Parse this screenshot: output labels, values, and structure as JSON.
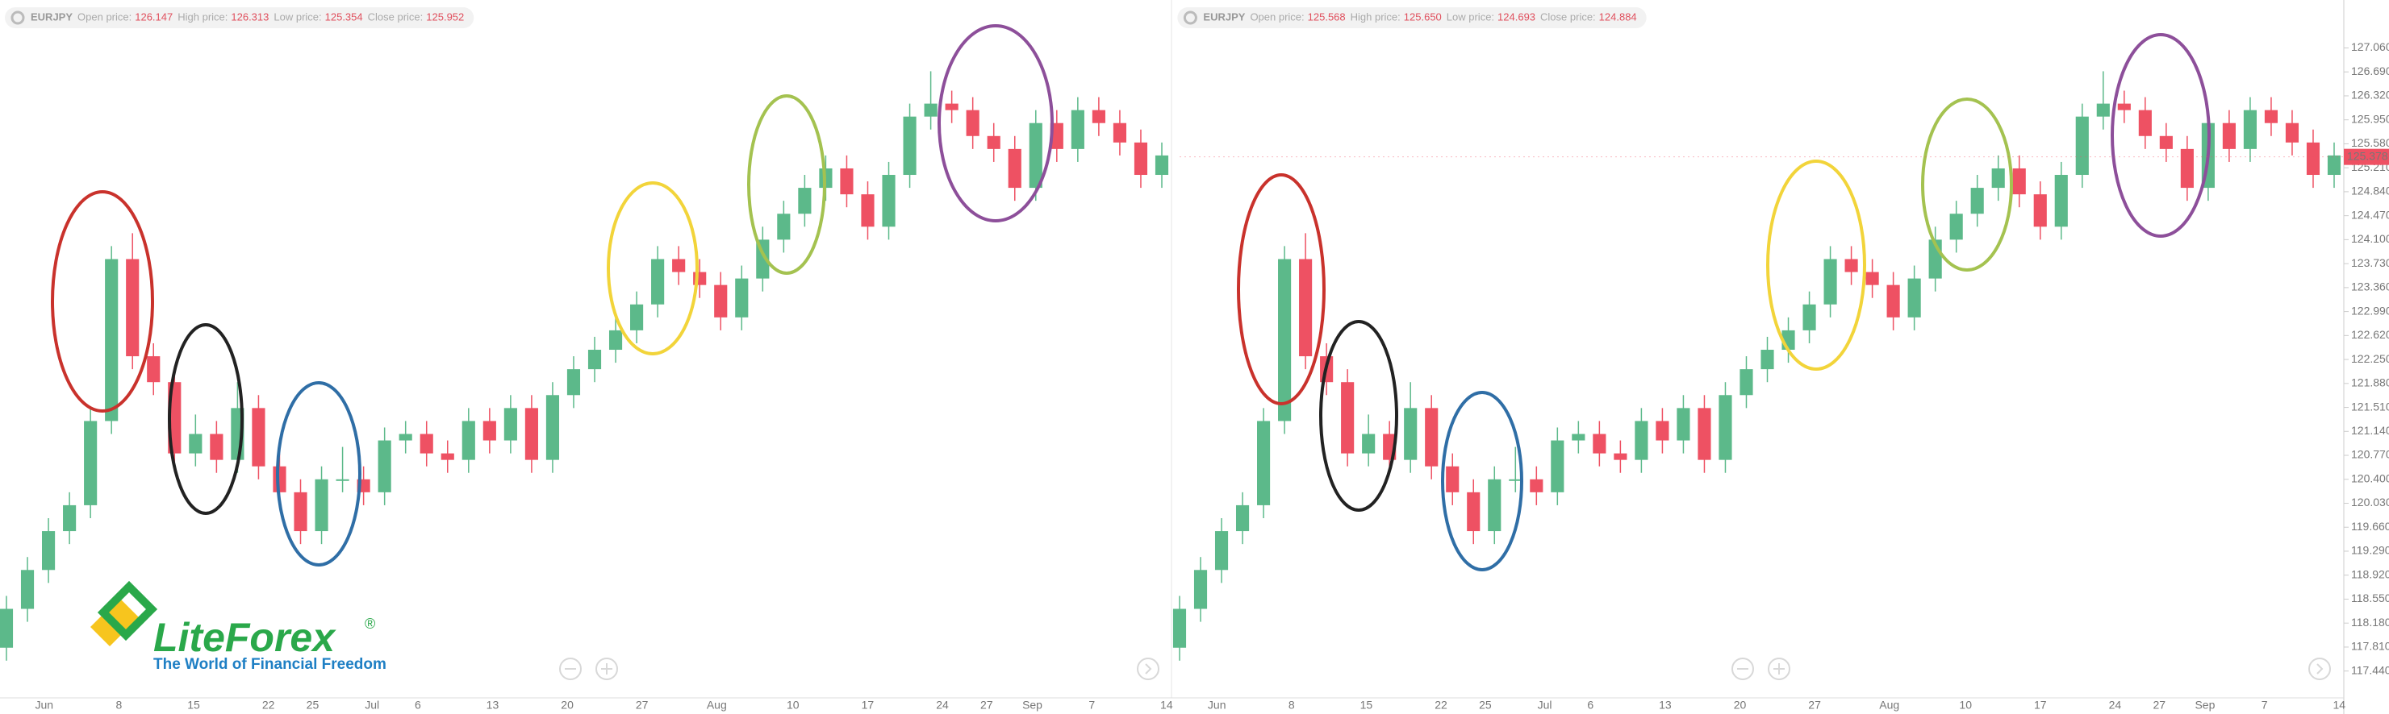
{
  "chart_data": [
    {
      "type": "candlestick",
      "symbol": "EURJPY",
      "info": {
        "labels": [
          "Open price:",
          "High price:",
          "Low price:",
          "Close price:"
        ],
        "values": [
          126.147,
          126.313,
          125.354,
          125.952
        ]
      },
      "ylim": [
        117.1,
        127.8
      ],
      "x_labels": [
        "Jun",
        "8",
        "15",
        "22",
        "25",
        "Jul",
        "6",
        "13",
        "20",
        "27",
        "Aug",
        "10",
        "17",
        "24",
        "27",
        "Sep",
        "7",
        "14"
      ],
      "up_color": "#5cb98a",
      "down_color": "#ee5163",
      "open": [
        117.8,
        118.4,
        119.0,
        119.6,
        120.0,
        121.3,
        123.8,
        122.3,
        121.9,
        120.8,
        121.1,
        120.7,
        121.5,
        120.6,
        120.2,
        119.6,
        120.4,
        120.4,
        120.2,
        121.0,
        121.1,
        120.8,
        120.7,
        121.3,
        121.0,
        121.5,
        120.7,
        121.7,
        122.1,
        122.4,
        122.7,
        123.1,
        123.8,
        123.6,
        123.4,
        122.9,
        123.5,
        124.1,
        124.5,
        124.9,
        125.2,
        124.8,
        124.3,
        125.1,
        126.0,
        126.2,
        126.1,
        125.7,
        125.5,
        124.9,
        125.9,
        125.5,
        126.1,
        125.9,
        125.6,
        125.1
      ],
      "high": [
        118.6,
        119.2,
        119.8,
        120.2,
        121.5,
        124.0,
        124.2,
        122.5,
        122.1,
        121.4,
        121.3,
        121.9,
        121.7,
        120.8,
        120.4,
        120.6,
        120.9,
        120.6,
        121.2,
        121.3,
        121.3,
        121.0,
        121.5,
        121.5,
        121.7,
        121.7,
        121.9,
        122.3,
        122.6,
        122.9,
        123.3,
        124.0,
        124.0,
        123.8,
        123.6,
        123.7,
        124.3,
        124.7,
        125.1,
        125.4,
        125.4,
        125.0,
        125.3,
        126.2,
        126.7,
        126.4,
        126.3,
        125.9,
        125.7,
        126.1,
        126.1,
        126.3,
        126.3,
        126.1,
        125.8,
        125.6
      ],
      "low": [
        117.6,
        118.2,
        118.8,
        119.4,
        119.8,
        121.1,
        122.1,
        121.7,
        120.6,
        120.6,
        120.5,
        120.5,
        120.4,
        120.0,
        119.4,
        119.4,
        120.2,
        120.0,
        120.0,
        120.8,
        120.6,
        120.5,
        120.5,
        120.8,
        120.8,
        120.5,
        120.5,
        121.5,
        121.9,
        122.2,
        122.5,
        122.9,
        123.4,
        123.2,
        122.7,
        122.7,
        123.3,
        123.9,
        124.3,
        124.7,
        124.6,
        124.1,
        124.1,
        124.9,
        125.8,
        125.9,
        125.5,
        125.3,
        124.7,
        124.7,
        125.3,
        125.3,
        125.7,
        125.4,
        124.9,
        124.9
      ],
      "close": [
        118.4,
        119.0,
        119.6,
        120.0,
        121.3,
        123.8,
        122.3,
        121.9,
        120.8,
        121.1,
        120.7,
        121.5,
        120.6,
        120.2,
        119.6,
        120.4,
        120.4,
        120.2,
        121.0,
        121.1,
        120.8,
        120.7,
        121.3,
        121.0,
        121.5,
        120.7,
        121.7,
        122.1,
        122.4,
        122.7,
        123.1,
        123.8,
        123.6,
        123.4,
        122.9,
        123.5,
        124.1,
        124.5,
        124.9,
        125.2,
        124.8,
        124.3,
        125.1,
        126.0,
        126.2,
        126.1,
        125.7,
        125.5,
        124.9,
        125.9,
        125.5,
        126.1,
        125.9,
        125.6,
        125.1,
        125.4
      ]
    },
    {
      "type": "candlestick",
      "symbol": "EURJPY",
      "info": {
        "labels": [
          "Open price:",
          "High price:",
          "Low price:",
          "Close price:"
        ],
        "values": [
          125.568,
          125.65,
          124.693,
          124.884
        ],
        "value_labels": [
          "125.568",
          "125.650",
          "124.693",
          "124.884"
        ]
      },
      "ylim": [
        117.1,
        127.8
      ],
      "yticks": [
        {
          "value": 117.44,
          "label": "117.440"
        },
        {
          "value": 117.81,
          "label": "117.810"
        },
        {
          "value": 118.18,
          "label": "118.180"
        },
        {
          "value": 118.55,
          "label": "118.550"
        },
        {
          "value": 118.92,
          "label": "118.920"
        },
        {
          "value": 119.29,
          "label": "119.290"
        },
        {
          "value": 119.66,
          "label": "119.660"
        },
        {
          "value": 120.03,
          "label": "120.030"
        },
        {
          "value": 120.4,
          "label": "120.400"
        },
        {
          "value": 120.77,
          "label": "120.770"
        },
        {
          "value": 121.14,
          "label": "121.140"
        },
        {
          "value": 121.51,
          "label": "121.510"
        },
        {
          "value": 121.88,
          "label": "121.880"
        },
        {
          "value": 122.25,
          "label": "122.250"
        },
        {
          "value": 122.62,
          "label": "122.620"
        },
        {
          "value": 122.99,
          "label": "122.990"
        },
        {
          "value": 123.36,
          "label": "123.360"
        },
        {
          "value": 123.73,
          "label": "123.730"
        },
        {
          "value": 124.1,
          "label": "124.100"
        },
        {
          "value": 124.47,
          "label": "124.470"
        },
        {
          "value": 124.84,
          "label": "124.840"
        },
        {
          "value": 125.21,
          "label": "125.210"
        },
        {
          "value": 125.58,
          "label": "125.580"
        },
        {
          "value": 125.95,
          "label": "125.950"
        },
        {
          "value": 126.32,
          "label": "126.320"
        },
        {
          "value": 126.69,
          "label": "126.690"
        },
        {
          "value": 127.06,
          "label": "127.060"
        }
      ],
      "last_price": 125.378,
      "x_labels": [
        "Jun",
        "8",
        "15",
        "22",
        "25",
        "Jul",
        "6",
        "13",
        "20",
        "27",
        "Aug",
        "10",
        "17",
        "24",
        "27",
        "Sep",
        "7",
        "14"
      ],
      "up_color": "#5cb98a",
      "down_color": "#ee5163",
      "open": [
        117.8,
        118.4,
        119.0,
        119.6,
        120.0,
        121.3,
        123.8,
        122.3,
        121.9,
        120.8,
        121.1,
        120.7,
        121.5,
        120.6,
        120.2,
        119.6,
        120.4,
        120.4,
        120.2,
        121.0,
        121.1,
        120.8,
        120.7,
        121.3,
        121.0,
        121.5,
        120.7,
        121.7,
        122.1,
        122.4,
        122.7,
        123.1,
        123.8,
        123.6,
        123.4,
        122.9,
        123.5,
        124.1,
        124.5,
        124.9,
        125.2,
        124.8,
        124.3,
        125.1,
        126.0,
        126.2,
        126.1,
        125.7,
        125.5,
        124.9,
        125.9,
        125.5,
        126.1,
        125.9,
        125.6,
        125.1
      ],
      "high": [
        118.6,
        119.2,
        119.8,
        120.2,
        121.5,
        124.0,
        124.2,
        122.5,
        122.1,
        121.4,
        121.3,
        121.9,
        121.7,
        120.8,
        120.4,
        120.6,
        120.9,
        120.6,
        121.2,
        121.3,
        121.3,
        121.0,
        121.5,
        121.5,
        121.7,
        121.7,
        121.9,
        122.3,
        122.6,
        122.9,
        123.3,
        124.0,
        124.0,
        123.8,
        123.6,
        123.7,
        124.3,
        124.7,
        125.1,
        125.4,
        125.4,
        125.0,
        125.3,
        126.2,
        126.7,
        126.4,
        126.3,
        125.9,
        125.7,
        126.1,
        126.1,
        126.3,
        126.3,
        126.1,
        125.8,
        125.6
      ],
      "low": [
        117.6,
        118.2,
        118.8,
        119.4,
        119.8,
        121.1,
        122.1,
        121.7,
        120.6,
        120.6,
        120.5,
        120.5,
        120.4,
        120.0,
        119.4,
        119.4,
        120.2,
        120.0,
        120.0,
        120.8,
        120.6,
        120.5,
        120.5,
        120.8,
        120.8,
        120.5,
        120.5,
        121.5,
        121.9,
        122.2,
        122.5,
        122.9,
        123.4,
        123.2,
        122.7,
        122.7,
        123.3,
        123.9,
        124.3,
        124.7,
        124.6,
        124.1,
        124.1,
        124.9,
        125.8,
        125.9,
        125.5,
        125.3,
        124.7,
        124.7,
        125.3,
        125.3,
        125.7,
        125.4,
        124.9,
        124.9
      ],
      "close": [
        118.4,
        119.0,
        119.6,
        120.0,
        121.3,
        123.8,
        122.3,
        121.9,
        120.8,
        121.1,
        120.7,
        121.5,
        120.6,
        120.2,
        119.6,
        120.4,
        120.4,
        120.2,
        121.0,
        121.1,
        120.8,
        120.7,
        121.3,
        121.0,
        121.5,
        120.7,
        121.7,
        122.1,
        122.4,
        122.7,
        123.1,
        123.8,
        123.6,
        123.4,
        122.9,
        123.5,
        124.1,
        124.5,
        124.9,
        125.2,
        124.8,
        124.3,
        125.1,
        126.0,
        126.2,
        126.1,
        125.7,
        125.5,
        124.9,
        125.9,
        125.5,
        126.1,
        125.9,
        125.6,
        125.1,
        125.4
      ]
    }
  ],
  "logo": {
    "name": "LiteForex",
    "mark": "®",
    "tagline": "The World of Financial Freedom"
  }
}
